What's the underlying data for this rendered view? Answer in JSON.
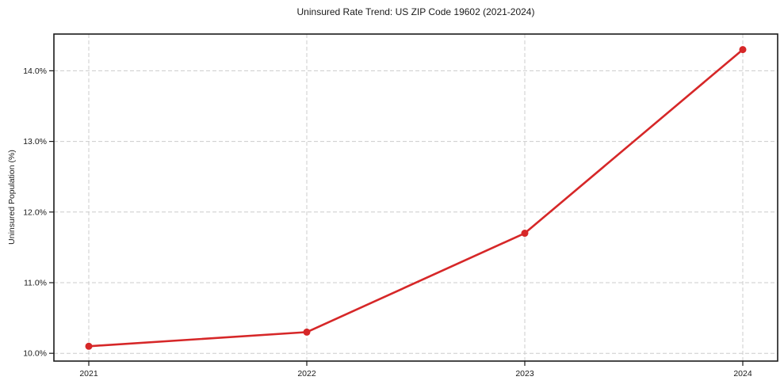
{
  "chart_data": {
    "type": "line",
    "title": "Uninsured Rate Trend: US ZIP Code 19602 (2021-2024)",
    "xlabel": "",
    "ylabel": "Uninsured Population (%)",
    "x": [
      2021,
      2022,
      2023,
      2024
    ],
    "values": [
      10.1,
      10.3,
      11.7,
      14.3
    ],
    "xtick_labels": [
      "2021",
      "2022",
      "2023",
      "2024"
    ],
    "ytick_labels": [
      "10.0%",
      "11.0%",
      "12.0%",
      "13.0%",
      "14.0%"
    ],
    "ytick_values": [
      10.0,
      11.0,
      12.0,
      13.0,
      14.0
    ],
    "xlim": [
      2020.84,
      2024.16
    ],
    "ylim": [
      9.89,
      14.52
    ],
    "grid": true,
    "legend_position": "none",
    "line_color": "#d62728",
    "marker": "circle",
    "marker_radius": 4.5,
    "line_width": 2.6,
    "grid_color": "#cccccc",
    "spine_color": "#1a1a1a",
    "tick_label_color": "#1a1a1a",
    "background_color": "#ffffff"
  }
}
